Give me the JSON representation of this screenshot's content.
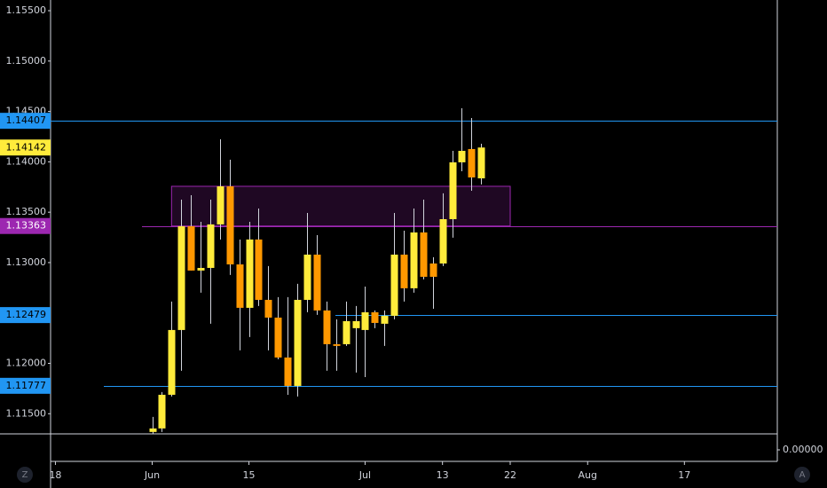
{
  "chart_data": {
    "type": "candlestick",
    "candles": {
      "open": [
        1.11319,
        1.11354,
        1.11688,
        1.12331,
        1.13361,
        1.12921,
        1.12947,
        1.13379,
        1.13757,
        1.12982,
        1.12551,
        1.13229,
        1.1263,
        1.12454,
        1.12058,
        1.11776,
        1.1263,
        1.13079,
        1.12525,
        1.1219,
        1.1219,
        1.12349,
        1.12331,
        1.12507,
        1.12393,
        1.12472,
        1.13079,
        1.12745,
        1.13299,
        1.12991,
        1.12991,
        1.13431,
        1.13995,
        1.14127,
        1.13836
      ],
      "high": [
        1.11468,
        1.11715,
        1.12613,
        1.13625,
        1.13669,
        1.13405,
        1.13625,
        1.14224,
        1.14021,
        1.13229,
        1.13405,
        1.13537,
        1.12965,
        1.12657,
        1.12657,
        1.12789,
        1.13493,
        1.13273,
        1.12613,
        1.12437,
        1.12613,
        1.12569,
        1.12762,
        1.12525,
        1.12525,
        1.13493,
        1.13317,
        1.13537,
        1.13625,
        1.13053,
        1.13687,
        1.14109,
        1.14532,
        1.14435,
        1.1418
      ],
      "low": [
        1.11301,
        1.11319,
        1.11671,
        1.11926,
        1.12921,
        1.12701,
        1.12393,
        1.13229,
        1.12877,
        1.12129,
        1.12261,
        1.12569,
        1.12129,
        1.12041,
        1.11688,
        1.11671,
        1.12507,
        1.12481,
        1.11926,
        1.11926,
        1.12173,
        1.11909,
        1.11864,
        1.12349,
        1.12173,
        1.12437,
        1.12613,
        1.12701,
        1.12833,
        1.12542,
        1.12965,
        1.13247,
        1.13907,
        1.13713,
        1.13775
      ],
      "close": [
        1.11354,
        1.11688,
        1.12331,
        1.13361,
        1.12921,
        1.12947,
        1.13379,
        1.13757,
        1.12982,
        1.12551,
        1.13229,
        1.1263,
        1.12454,
        1.12058,
        1.11776,
        1.1263,
        1.13079,
        1.12525,
        1.1219,
        1.12173,
        1.12419,
        1.12419,
        1.12507,
        1.12401,
        1.12472,
        1.13079,
        1.12745,
        1.13299,
        1.12859,
        1.12859,
        1.13431,
        1.13995,
        1.14109,
        1.13845,
        1.14142
      ]
    },
    "up_color": "#ffeb3b",
    "down_color": "#ff9800",
    "ylim": [
      1.113,
      1.15606
    ],
    "yticks": [
      {
        "value": 1.155,
        "label": "1.15500"
      },
      {
        "value": 1.15,
        "label": "1.15000"
      },
      {
        "value": 1.145,
        "label": "1.14500"
      },
      {
        "value": 1.14,
        "label": "1.14000"
      },
      {
        "value": 1.135,
        "label": "1.13500"
      },
      {
        "value": 1.13,
        "label": "1.13000"
      },
      {
        "value": 1.12,
        "label": "1.12000"
      },
      {
        "value": 1.115,
        "label": "1.11500"
      }
    ],
    "xlim": [
      -10.5,
      64.6
    ],
    "xticks": [
      {
        "value": -10,
        "label": "18"
      },
      {
        "value": 0,
        "label": "Jun"
      },
      {
        "value": 10,
        "label": "15"
      },
      {
        "value": 22,
        "label": "Jul"
      },
      {
        "value": 30,
        "label": "13"
      },
      {
        "value": 37,
        "label": "22"
      },
      {
        "value": 45,
        "label": "Aug"
      },
      {
        "value": 55,
        "label": "17"
      }
    ],
    "levels": [
      {
        "value": 1.14407,
        "color": "#2196f3",
        "text_color": "#000000",
        "line": true
      },
      {
        "value": 1.14142,
        "color": "#ffeb3b",
        "text_color": "#000000",
        "line": false
      },
      {
        "value": 1.13363,
        "color": "#9c27b0",
        "text_color": "#ffffff",
        "line": true
      },
      {
        "value": 1.12479,
        "color": "#2196f3",
        "text_color": "#000000",
        "line": true
      },
      {
        "value": 1.11777,
        "color": "#2196f3",
        "text_color": "#000000",
        "line": true
      }
    ],
    "zone": {
      "top": 1.13757,
      "bottom": 1.13363,
      "color": "#9c27b0"
    },
    "pane2_ticks": [
      {
        "value": 0,
        "label": "0.00000"
      }
    ]
  },
  "controls": [
    "Z",
    "A"
  ]
}
